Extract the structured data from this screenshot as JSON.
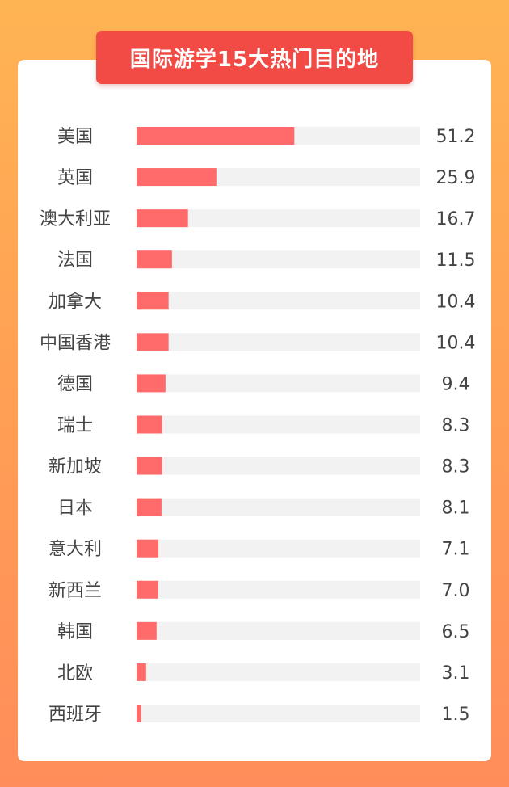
{
  "title": "国际游学15大热门目的地",
  "colors": {
    "background_top": "#ffb453",
    "background_bottom": "#ff8d5b",
    "banner": "#f24a45",
    "bar": "#ff6b6b",
    "track": "#f2f2f2",
    "text": "#444444"
  },
  "chart_data": {
    "type": "bar",
    "orientation": "horizontal",
    "title": "国际游学15大热门目的地",
    "categories": [
      "美国",
      "英国",
      "澳大利亚",
      "法国",
      "加拿大",
      "中国香港",
      "德国",
      "瑞士",
      "新加坡",
      "日本",
      "意大利",
      "新西兰",
      "韩国",
      "北欧",
      "西班牙"
    ],
    "values": [
      51.2,
      25.9,
      16.7,
      11.5,
      10.4,
      10.4,
      9.4,
      8.3,
      8.3,
      8.1,
      7.1,
      7.0,
      6.5,
      3.1,
      1.5
    ],
    "value_labels": [
      "51.2",
      "25.9",
      "16.7",
      "11.5",
      "10.4",
      "10.4",
      "9.4",
      "8.3",
      "8.3",
      "8.1",
      "7.1",
      "7.0",
      "6.5",
      "3.1",
      "1.5"
    ],
    "xlim": [
      0,
      92
    ],
    "grid": false,
    "legend": "none"
  }
}
